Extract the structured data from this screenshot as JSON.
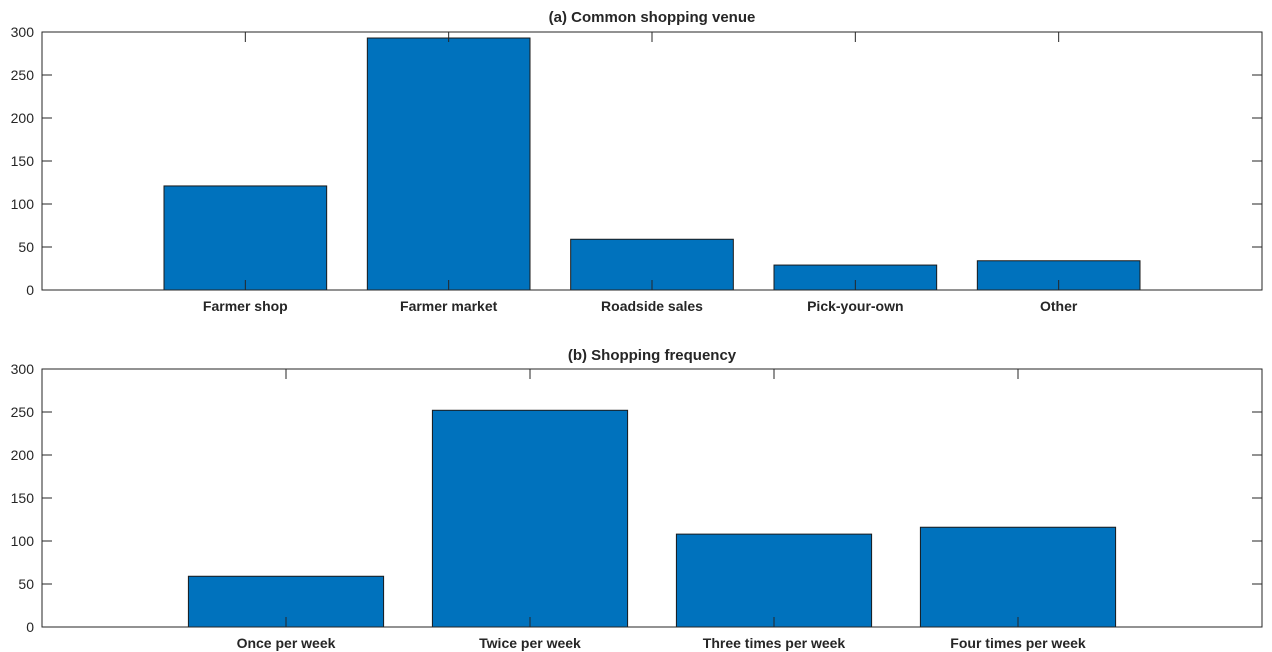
{
  "chart_data": [
    {
      "type": "bar",
      "title": "(a) Common shopping venue",
      "categories": [
        "Farmer shop",
        "Farmer market",
        "Roadside sales",
        "Pick-your-own",
        "Other"
      ],
      "values": [
        121,
        293,
        59,
        29,
        34
      ],
      "ylim": [
        0,
        300
      ],
      "yticks": [
        0,
        50,
        100,
        150,
        200,
        250,
        300
      ],
      "bar_color": "#0072BD",
      "grid": false
    },
    {
      "type": "bar",
      "title": "(b) Shopping frequency",
      "categories": [
        "Once per week",
        "Twice per week",
        "Three times per week",
        "Four times per week"
      ],
      "values": [
        59,
        252,
        108,
        116
      ],
      "ylim": [
        0,
        300
      ],
      "yticks": [
        0,
        50,
        100,
        150,
        200,
        250,
        300
      ],
      "bar_color": "#0072BD",
      "grid": false
    }
  ]
}
